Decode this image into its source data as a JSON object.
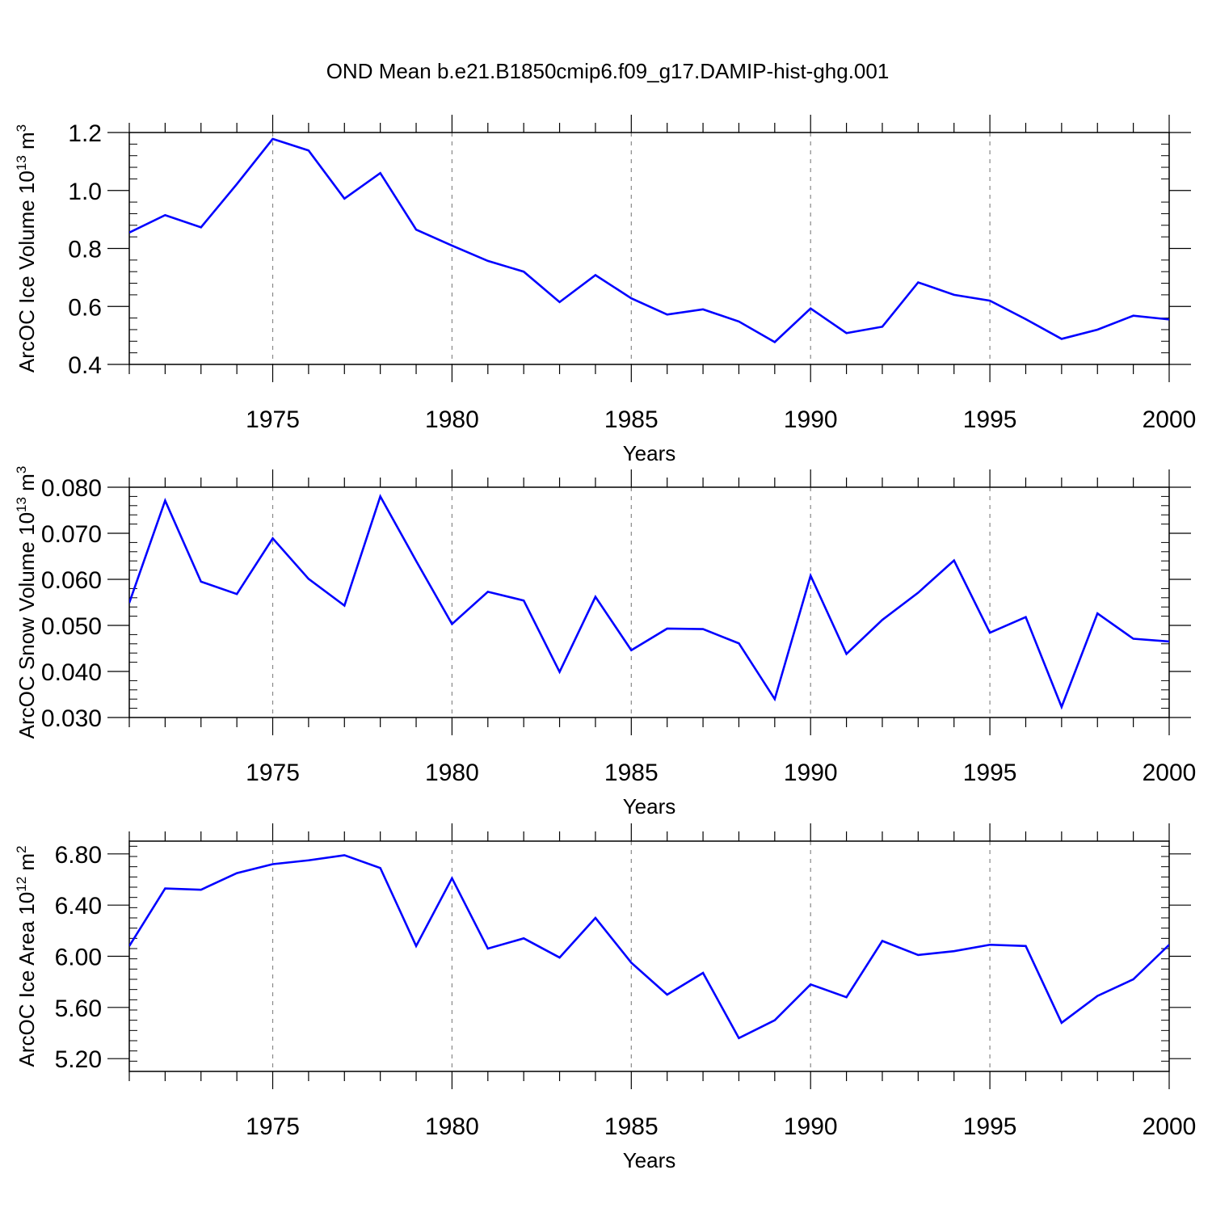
{
  "title": "OND Mean b.e21.B1850cmip6.f09_g17.DAMIP-hist-ghg.001",
  "chart_data": [
    {
      "type": "line",
      "title": "",
      "xlabel": "Years",
      "ylabel": "ArcOC Ice Volume",
      "ylabel_unit_base": "10",
      "ylabel_unit_exp": "13",
      "ylabel_unit_m": "m",
      "ylabel_unit_m_exp": "3",
      "xlim": [
        1971,
        2000
      ],
      "ylim": [
        0.4,
        1.2
      ],
      "yticks": [
        "0.4",
        "0.6",
        "0.8",
        "1.0",
        "1.2"
      ],
      "ytick_values": [
        0.4,
        0.6,
        0.8,
        1.0,
        1.2
      ],
      "xticks": [
        "1975",
        "1980",
        "1985",
        "1990",
        "1995",
        "2000"
      ],
      "xtick_values": [
        1975,
        1980,
        1985,
        1990,
        1995,
        2000
      ],
      "line_color": "#0000ff",
      "x": [
        1971,
        1972,
        1973,
        1974,
        1975,
        1976,
        1977,
        1978,
        1979,
        1980,
        1981,
        1982,
        1983,
        1984,
        1985,
        1986,
        1987,
        1988,
        1989,
        1990,
        1991,
        1992,
        1993,
        1994,
        1995,
        1996,
        1997,
        1998,
        1999,
        2000
      ],
      "values": [
        0.855,
        0.915,
        0.873,
        1.022,
        1.178,
        1.138,
        0.972,
        1.06,
        0.865,
        0.81,
        0.757,
        0.72,
        0.615,
        0.708,
        0.628,
        0.572,
        0.59,
        0.548,
        0.477,
        0.593,
        0.508,
        0.53,
        0.683,
        0.64,
        0.62,
        0.556,
        0.488,
        0.52,
        0.568,
        0.555
      ]
    },
    {
      "type": "line",
      "title": "",
      "xlabel": "Years",
      "ylabel": "ArcOC Snow Volume",
      "ylabel_unit_base": "10",
      "ylabel_unit_exp": "13",
      "ylabel_unit_m": "m",
      "ylabel_unit_m_exp": "3",
      "xlim": [
        1971,
        2000
      ],
      "ylim": [
        0.03,
        0.08
      ],
      "yticks": [
        "0.030",
        "0.040",
        "0.050",
        "0.060",
        "0.070",
        "0.080"
      ],
      "ytick_values": [
        0.03,
        0.04,
        0.05,
        0.06,
        0.07,
        0.08
      ],
      "xticks": [
        "1975",
        "1980",
        "1985",
        "1990",
        "1995",
        "2000"
      ],
      "xtick_values": [
        1975,
        1980,
        1985,
        1990,
        1995,
        2000
      ],
      "line_color": "#0000ff",
      "x": [
        1971,
        1972,
        1973,
        1974,
        1975,
        1976,
        1977,
        1978,
        1979,
        1980,
        1981,
        1982,
        1983,
        1984,
        1985,
        1986,
        1987,
        1988,
        1989,
        1990,
        1991,
        1992,
        1993,
        1994,
        1995,
        1996,
        1997,
        1998,
        1999,
        2000
      ],
      "values": [
        0.0549,
        0.0771,
        0.0595,
        0.0568,
        0.0689,
        0.0601,
        0.0543,
        0.078,
        0.064,
        0.0503,
        0.0573,
        0.0554,
        0.0399,
        0.0562,
        0.0446,
        0.0493,
        0.0492,
        0.0461,
        0.034,
        0.0608,
        0.0438,
        0.0512,
        0.0571,
        0.0641,
        0.0484,
        0.0518,
        0.0323,
        0.0526,
        0.0471,
        0.0465
      ]
    },
    {
      "type": "line",
      "title": "",
      "xlabel": "Years",
      "ylabel": "ArcOC Ice Area",
      "ylabel_unit_base": "10",
      "ylabel_unit_exp": "12",
      "ylabel_unit_m": "m",
      "ylabel_unit_m_exp": "2",
      "xlim": [
        1971,
        2000
      ],
      "ylim": [
        5.1,
        6.9
      ],
      "yticks": [
        "5.20",
        "5.60",
        "6.00",
        "6.40",
        "6.80"
      ],
      "ytick_values": [
        5.2,
        5.6,
        6.0,
        6.4,
        6.8
      ],
      "xticks": [
        "1975",
        "1980",
        "1985",
        "1990",
        "1995",
        "2000"
      ],
      "xtick_values": [
        1975,
        1980,
        1985,
        1990,
        1995,
        2000
      ],
      "line_color": "#0000ff",
      "x": [
        1971,
        1972,
        1973,
        1974,
        1975,
        1976,
        1977,
        1978,
        1979,
        1980,
        1981,
        1982,
        1983,
        1984,
        1985,
        1986,
        1987,
        1988,
        1989,
        1990,
        1991,
        1992,
        1993,
        1994,
        1995,
        1996,
        1997,
        1998,
        1999,
        2000
      ],
      "values": [
        6.08,
        6.53,
        6.52,
        6.65,
        6.72,
        6.75,
        6.79,
        6.69,
        6.08,
        6.61,
        6.06,
        6.14,
        5.99,
        6.3,
        5.95,
        5.7,
        5.87,
        5.36,
        5.5,
        5.78,
        5.68,
        6.12,
        6.01,
        6.04,
        6.09,
        6.08,
        5.48,
        5.69,
        5.82,
        6.09
      ]
    }
  ]
}
